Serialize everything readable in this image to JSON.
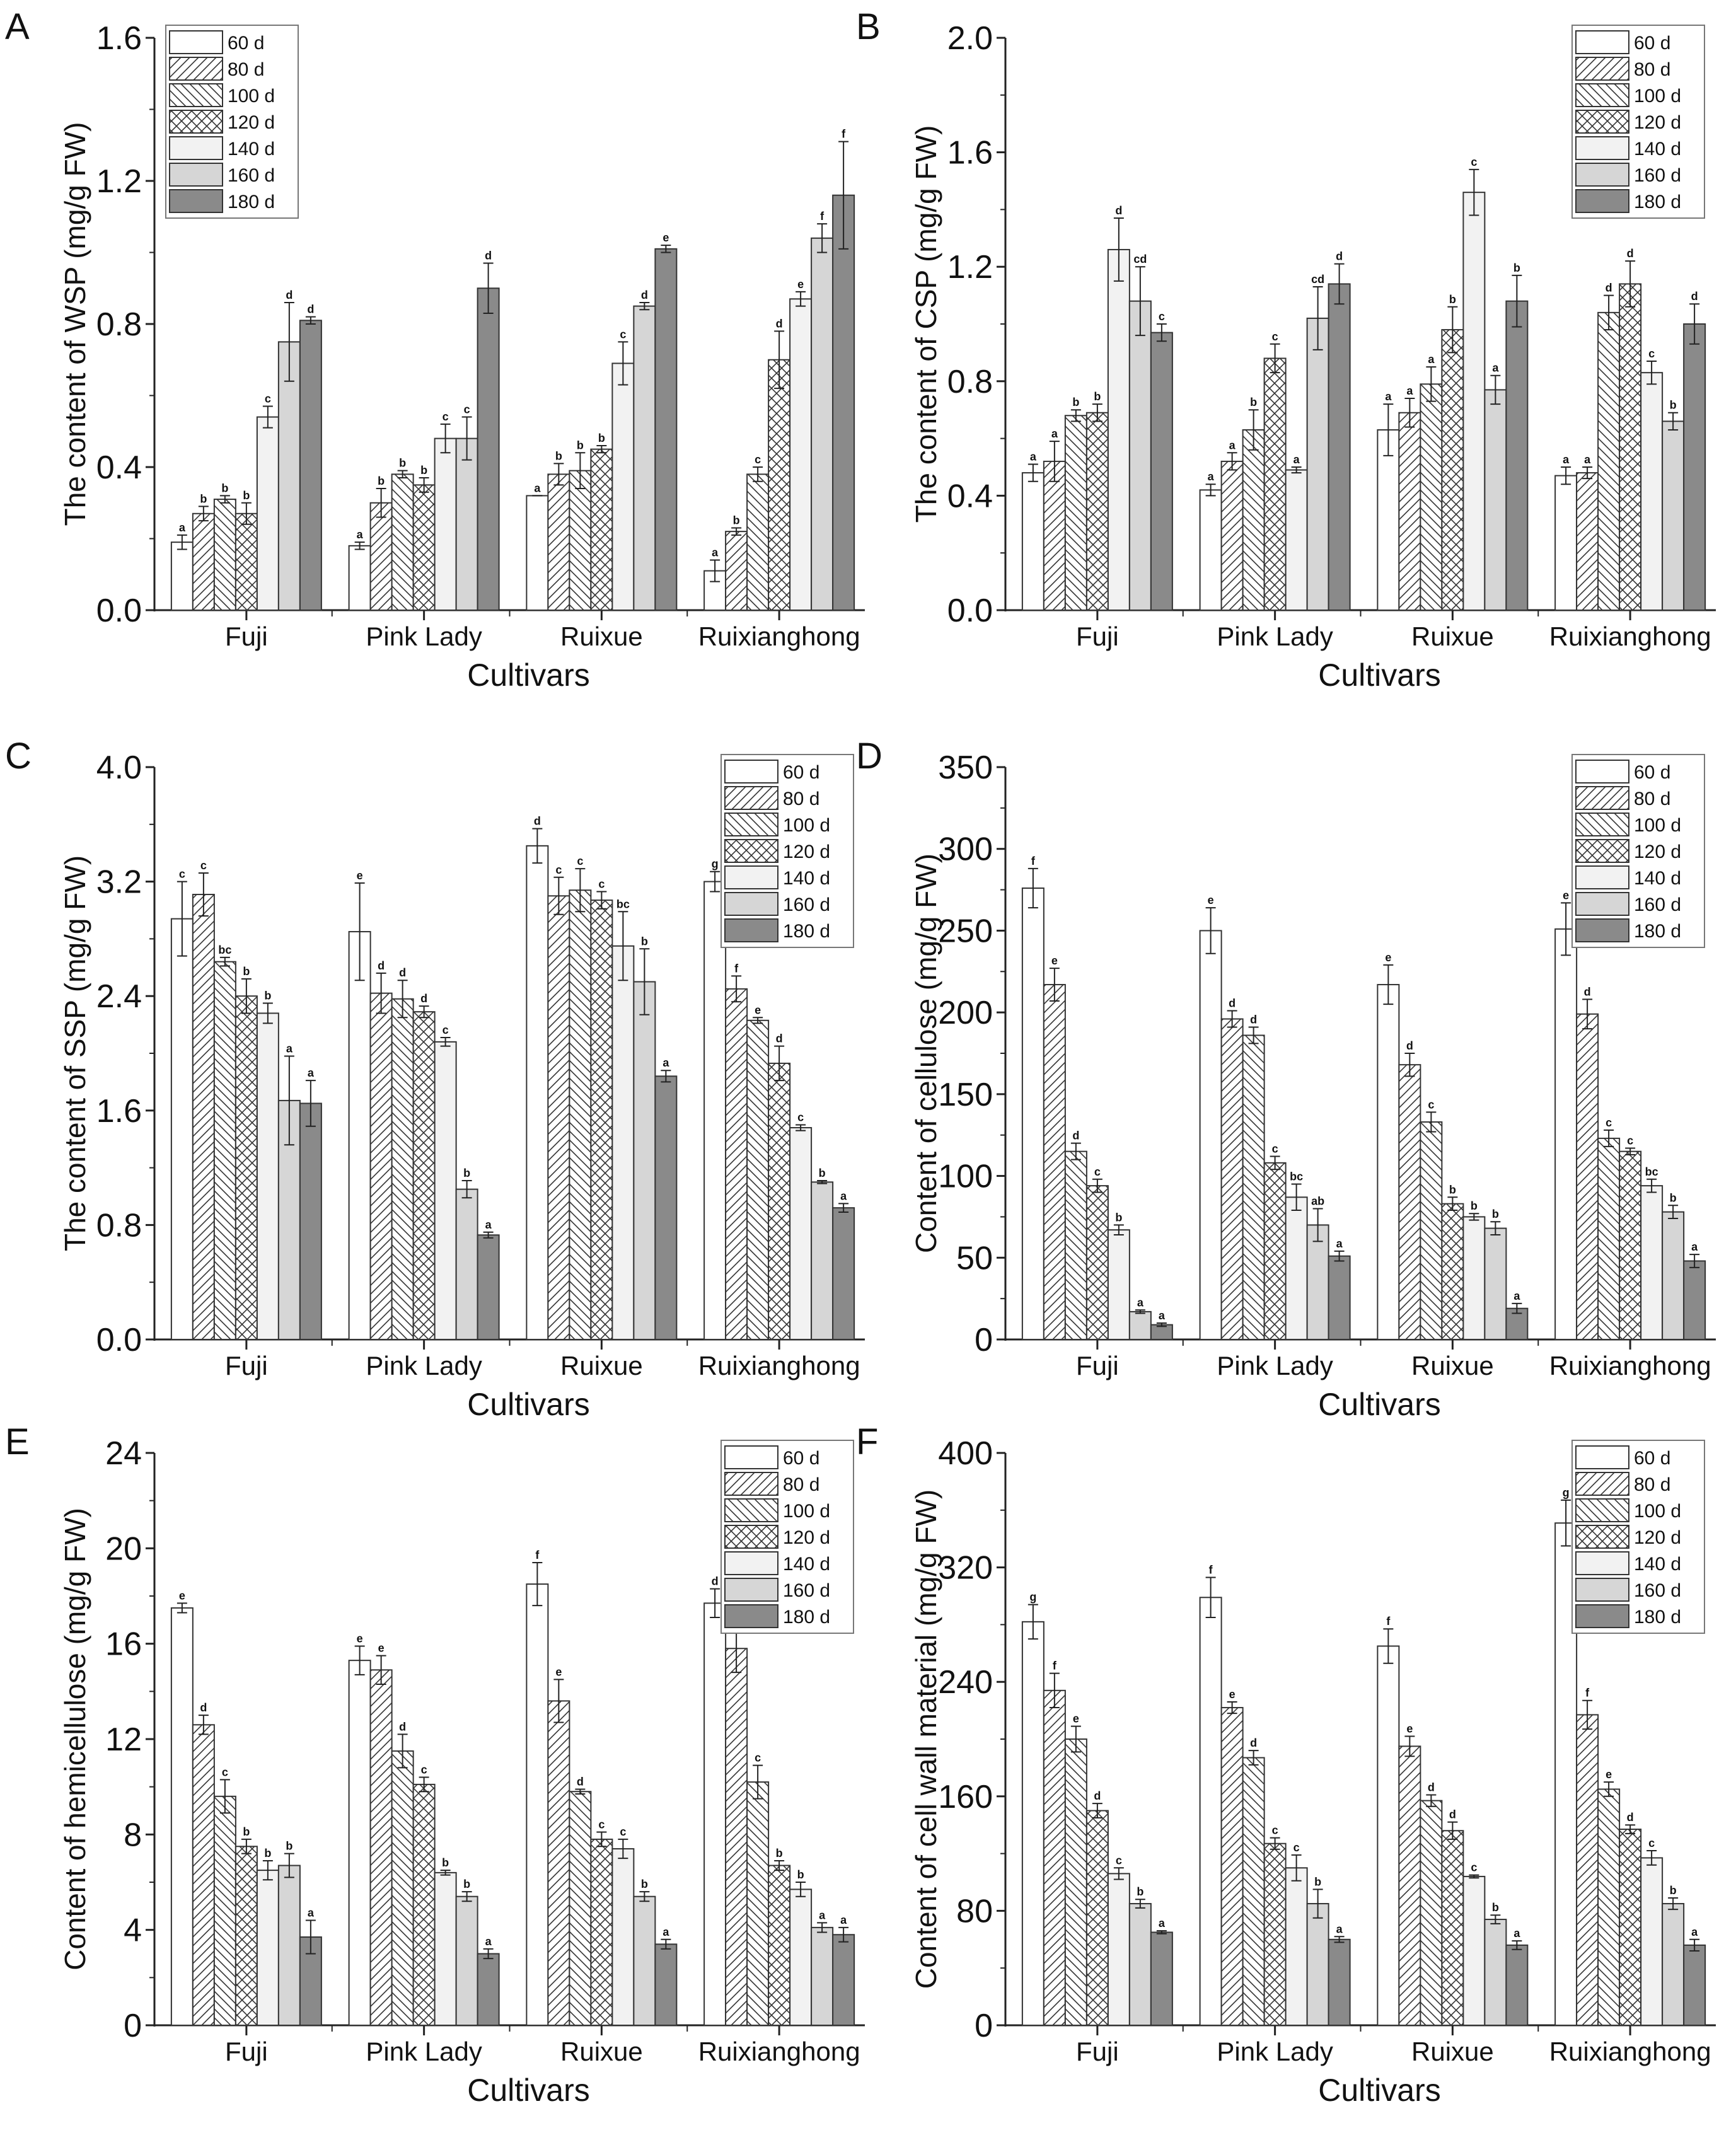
{
  "series_names": [
    "60 d",
    "80 d",
    "100 d",
    "120 d",
    "140 d",
    "160 d",
    "180 d"
  ],
  "colors": {
    "s60": "#ffffff",
    "s140": "#f2f2f2",
    "s160": "#d6d6d6",
    "s180": "#8a8a8a",
    "axis": "#222222"
  },
  "chart_data": [
    {
      "panel": "A",
      "type": "bar",
      "legend": "top-left",
      "ylabel": "The content of WSP (mg/g FW)",
      "xlabel": "Cultivars",
      "categories": [
        "Fuji",
        "Pink Lady",
        "Ruixue",
        "Ruixianghong"
      ],
      "ylim": [
        0,
        1.6
      ],
      "yticks": [
        "0.0",
        "0.4",
        "0.8",
        "1.2",
        "1.6"
      ],
      "values": [
        [
          0.19,
          0.27,
          0.31,
          0.27,
          0.54,
          0.75,
          0.81
        ],
        [
          0.18,
          0.3,
          0.38,
          0.35,
          0.48,
          0.48,
          0.9
        ],
        [
          0.32,
          0.38,
          0.39,
          0.45,
          0.69,
          0.85,
          1.01
        ],
        [
          0.11,
          0.22,
          0.38,
          0.7,
          0.87,
          1.04,
          1.16
        ]
      ],
      "errors": [
        [
          0.02,
          0.02,
          0.01,
          0.03,
          0.03,
          0.11,
          0.01
        ],
        [
          0.01,
          0.04,
          0.01,
          0.02,
          0.04,
          0.06,
          0.07
        ],
        [
          0.0,
          0.03,
          0.05,
          0.01,
          0.06,
          0.01,
          0.01
        ],
        [
          0.03,
          0.01,
          0.02,
          0.08,
          0.02,
          0.04,
          0.15
        ]
      ],
      "letters": [
        [
          "a",
          "b",
          "b",
          "b",
          "c",
          "d",
          "d"
        ],
        [
          "a",
          "b",
          "b",
          "b",
          "c",
          "c",
          "d"
        ],
        [
          "a",
          "b",
          "b",
          "b",
          "c",
          "d",
          "e"
        ],
        [
          "a",
          "b",
          "c",
          "d",
          "e",
          "f",
          "f"
        ]
      ]
    },
    {
      "panel": "B",
      "type": "bar",
      "legend": "top-right",
      "ylabel": "The content of CSP (mg/g FW)",
      "xlabel": "Cultivars",
      "categories": [
        "Fuji",
        "Pink Lady",
        "Ruixue",
        "Ruixianghong"
      ],
      "ylim": [
        0,
        2.0
      ],
      "yticks": [
        "0.0",
        "0.4",
        "0.8",
        "1.2",
        "1.6",
        "2.0"
      ],
      "values": [
        [
          0.48,
          0.52,
          0.68,
          0.69,
          1.26,
          1.08,
          0.97
        ],
        [
          0.42,
          0.52,
          0.63,
          0.88,
          0.49,
          1.02,
          1.14
        ],
        [
          0.63,
          0.69,
          0.79,
          0.98,
          1.46,
          0.77,
          1.08
        ],
        [
          0.47,
          0.48,
          1.04,
          1.14,
          0.83,
          0.66,
          1.0
        ]
      ],
      "errors": [
        [
          0.03,
          0.07,
          0.02,
          0.03,
          0.11,
          0.12,
          0.03
        ],
        [
          0.02,
          0.03,
          0.07,
          0.05,
          0.01,
          0.11,
          0.07
        ],
        [
          0.09,
          0.05,
          0.06,
          0.08,
          0.08,
          0.05,
          0.09
        ],
        [
          0.03,
          0.02,
          0.06,
          0.08,
          0.04,
          0.03,
          0.07
        ]
      ],
      "letters": [
        [
          "a",
          "a",
          "b",
          "b",
          "d",
          "cd",
          "c"
        ],
        [
          "a",
          "a",
          "b",
          "c",
          "a",
          "cd",
          "d"
        ],
        [
          "a",
          "a",
          "a",
          "b",
          "c",
          "a",
          "b"
        ],
        [
          "a",
          "a",
          "d",
          "d",
          "c",
          "b",
          "d"
        ]
      ]
    },
    {
      "panel": "C",
      "type": "bar",
      "legend": "top-right",
      "ylabel": "The content of SSP (mg/g FW)",
      "xlabel": "Cultivars",
      "categories": [
        "Fuji",
        "Pink Lady",
        "Ruixue",
        "Ruixianghong"
      ],
      "ylim": [
        0,
        4.0
      ],
      "yticks": [
        "0.0",
        "0.8",
        "1.6",
        "2.4",
        "3.2",
        "4.0"
      ],
      "values": [
        [
          2.94,
          3.11,
          2.64,
          2.4,
          2.28,
          1.67,
          1.65
        ],
        [
          2.85,
          2.42,
          2.38,
          2.29,
          2.08,
          1.05,
          0.73
        ],
        [
          3.45,
          3.1,
          3.14,
          3.07,
          2.75,
          2.5,
          1.84
        ],
        [
          3.2,
          2.45,
          2.23,
          1.93,
          1.48,
          1.1,
          0.92
        ]
      ],
      "errors": [
        [
          0.26,
          0.15,
          0.03,
          0.12,
          0.07,
          0.31,
          0.16
        ],
        [
          0.34,
          0.14,
          0.13,
          0.04,
          0.03,
          0.06,
          0.02
        ],
        [
          0.12,
          0.13,
          0.15,
          0.06,
          0.24,
          0.23,
          0.04
        ],
        [
          0.07,
          0.09,
          0.02,
          0.12,
          0.02,
          0.01,
          0.03
        ]
      ],
      "letters": [
        [
          "c",
          "c",
          "bc",
          "b",
          "b",
          "a",
          "a"
        ],
        [
          "e",
          "d",
          "d",
          "d",
          "c",
          "b",
          "a"
        ],
        [
          "d",
          "c",
          "c",
          "c",
          "bc",
          "b",
          "a"
        ],
        [
          "g",
          "f",
          "e",
          "d",
          "c",
          "b",
          "a"
        ]
      ]
    },
    {
      "panel": "D",
      "type": "bar",
      "legend": "top-right",
      "ylabel": "Content of cellulose (mg/g FW)",
      "xlabel": "Cultivars",
      "categories": [
        "Fuji",
        "Pink Lady",
        "Ruixue",
        "Ruixianghong"
      ],
      "ylim": [
        0,
        350
      ],
      "yticks": [
        "0",
        "50",
        "100",
        "150",
        "200",
        "250",
        "300",
        "350"
      ],
      "values": [
        [
          276,
          217,
          115,
          94,
          67,
          17,
          9
        ],
        [
          250,
          196,
          186,
          108,
          87,
          70,
          51
        ],
        [
          217,
          168,
          133,
          83,
          75,
          68,
          19
        ],
        [
          251,
          199,
          123,
          115,
          94,
          78,
          48
        ]
      ],
      "errors": [
        [
          12,
          10,
          5,
          4,
          3,
          1,
          1
        ],
        [
          14,
          5,
          5,
          4,
          8,
          10,
          3
        ],
        [
          12,
          7,
          6,
          4,
          2,
          4,
          3
        ],
        [
          16,
          9,
          5,
          2,
          4,
          4,
          4
        ]
      ],
      "letters": [
        [
          "f",
          "e",
          "d",
          "c",
          "b",
          "a",
          "a"
        ],
        [
          "e",
          "d",
          "d",
          "c",
          "bc",
          "ab",
          "a"
        ],
        [
          "e",
          "d",
          "c",
          "b",
          "b",
          "b",
          "a"
        ],
        [
          "e",
          "d",
          "c",
          "c",
          "bc",
          "b",
          "a"
        ]
      ]
    },
    {
      "panel": "E",
      "type": "bar",
      "legend": "top-right",
      "ylabel": "Content of hemicellulose (mg/g FW)",
      "xlabel": "Cultivars",
      "categories": [
        "Fuji",
        "Pink Lady",
        "Ruixue",
        "Ruixianghong"
      ],
      "ylim": [
        0,
        24
      ],
      "yticks": [
        "0",
        "4",
        "8",
        "12",
        "16",
        "20",
        "24"
      ],
      "values": [
        [
          17.5,
          12.6,
          9.6,
          7.5,
          6.5,
          6.7,
          3.7
        ],
        [
          15.3,
          14.9,
          11.5,
          10.1,
          6.4,
          5.4,
          3.0
        ],
        [
          18.5,
          13.6,
          9.8,
          7.8,
          7.4,
          5.4,
          3.4
        ],
        [
          17.7,
          15.8,
          10.2,
          6.7,
          5.7,
          4.1,
          3.8
        ]
      ],
      "errors": [
        [
          0.2,
          0.4,
          0.7,
          0.3,
          0.4,
          0.5,
          0.7
        ],
        [
          0.6,
          0.6,
          0.7,
          0.3,
          0.1,
          0.2,
          0.2
        ],
        [
          0.9,
          0.9,
          0.1,
          0.3,
          0.4,
          0.2,
          0.2
        ],
        [
          0.6,
          1.0,
          0.7,
          0.2,
          0.3,
          0.2,
          0.3
        ]
      ],
      "letters": [
        [
          "e",
          "d",
          "c",
          "b",
          "b",
          "b",
          "a"
        ],
        [
          "e",
          "e",
          "d",
          "c",
          "b",
          "b",
          "a"
        ],
        [
          "f",
          "e",
          "d",
          "c",
          "c",
          "b",
          "a"
        ],
        [
          "d",
          "d",
          "c",
          "b",
          "b",
          "a",
          "a"
        ]
      ]
    },
    {
      "panel": "F",
      "type": "bar",
      "legend": "top-right",
      "ylabel": "Content of cell wall material (mg/g FW)",
      "xlabel": "Cultivars",
      "categories": [
        "Fuji",
        "Pink Lady",
        "Ruixue",
        "Ruixianghong"
      ],
      "ylim": [
        0,
        400
      ],
      "yticks": [
        "0",
        "80",
        "160",
        "240",
        "320",
        "400"
      ],
      "values": [
        [
          282,
          234,
          200,
          150,
          106,
          85,
          65
        ],
        [
          299,
          222,
          187,
          127,
          110,
          85,
          60
        ],
        [
          265,
          195,
          157,
          136,
          104,
          74,
          56
        ],
        [
          351,
          217,
          165,
          137,
          117,
          85,
          56
        ]
      ],
      "errors": [
        [
          12,
          12,
          9,
          5,
          4,
          3,
          1
        ],
        [
          14,
          4,
          5,
          4,
          9,
          10,
          2
        ],
        [
          12,
          7,
          4,
          6,
          1,
          3,
          3
        ],
        [
          16,
          10,
          5,
          3,
          5,
          4,
          4
        ]
      ],
      "letters": [
        [
          "g",
          "f",
          "e",
          "d",
          "c",
          "b",
          "a"
        ],
        [
          "f",
          "e",
          "d",
          "c",
          "c",
          "b",
          "a"
        ],
        [
          "f",
          "e",
          "d",
          "d",
          "c",
          "b",
          "a"
        ],
        [
          "g",
          "f",
          "e",
          "d",
          "c",
          "b",
          "a"
        ]
      ]
    }
  ]
}
